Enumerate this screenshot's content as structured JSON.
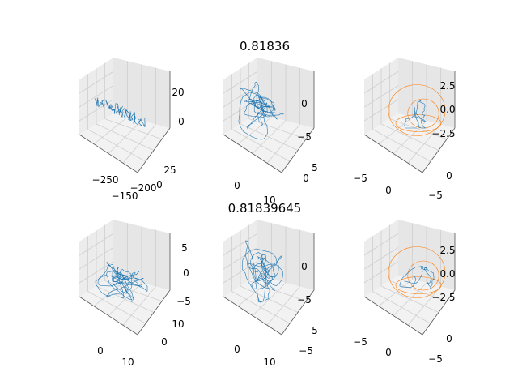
{
  "chart_data": [
    {
      "type": "line3d",
      "title": "",
      "x_ticks": [
        "−250",
        "−200",
        "−150"
      ],
      "y_ticks": [
        "25",
        "0"
      ],
      "z_ticks": [
        "20",
        "0"
      ],
      "series": [
        {
          "color": "#1f77b4",
          "shape": "elongated"
        }
      ]
    },
    {
      "type": "line3d",
      "title": "0.81836",
      "x_ticks": [
        "0",
        "10"
      ],
      "y_ticks": [
        "5",
        "0"
      ],
      "z_ticks": [
        "0",
        "−5"
      ],
      "series": [
        {
          "color": "#1f77b4",
          "shape": "dense"
        }
      ]
    },
    {
      "type": "line3d",
      "title": "",
      "x_ticks": [
        "−5",
        "0"
      ],
      "y_ticks": [
        "0",
        "−5"
      ],
      "z_ticks": [
        "2.5",
        "0.0",
        "−2.5"
      ],
      "series": [
        {
          "color": "#ff7f0e",
          "shape": "loops"
        },
        {
          "color": "#1f77b4",
          "shape": "small"
        }
      ]
    },
    {
      "type": "line3d",
      "title": "0.81839645",
      "x_ticks": [
        "0",
        "10"
      ],
      "y_ticks": [
        "10",
        "0"
      ],
      "z_ticks": [
        "5",
        "0",
        "−5"
      ],
      "series": [
        {
          "color": "#1f77b4",
          "shape": "dense"
        }
      ]
    },
    {
      "type": "line3d",
      "title": "",
      "x_ticks": [
        "0",
        "10"
      ],
      "y_ticks": [
        "5",
        "−5"
      ],
      "z_ticks": [
        "0",
        "−5"
      ],
      "series": [
        {
          "color": "#1f77b4",
          "shape": "dense"
        }
      ]
    },
    {
      "type": "line3d",
      "title": "",
      "x_ticks": [
        "−5",
        "0"
      ],
      "y_ticks": [
        "0",
        "−5"
      ],
      "z_ticks": [
        "2.5",
        "0.0",
        "−2.5"
      ],
      "series": [
        {
          "color": "#ff7f0e",
          "shape": "loops"
        },
        {
          "color": "#1f77b4",
          "shape": "small"
        }
      ]
    }
  ]
}
